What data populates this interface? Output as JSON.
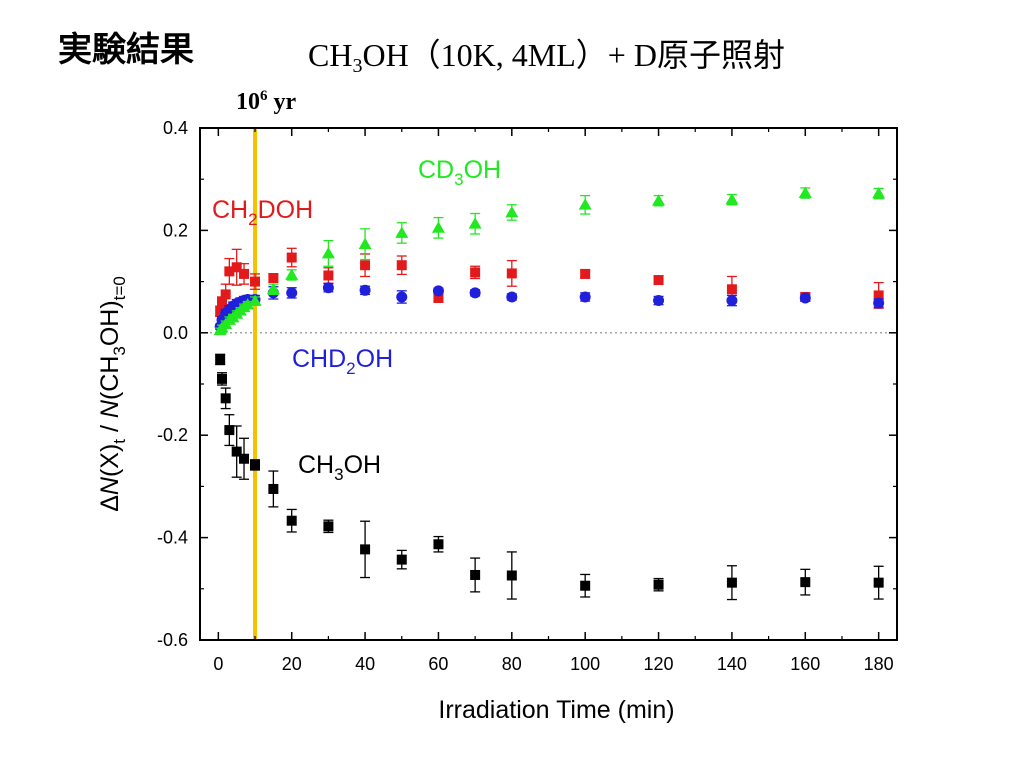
{
  "slide": {
    "heading": "実験結果",
    "title_parts": [
      "CH",
      "3",
      "OH（10K, 4ML）+ D原子照射"
    ],
    "marker_label_base": "10",
    "marker_label_exp": "6",
    "marker_label_unit": " yr"
  },
  "chart_data": {
    "type": "scatter",
    "xlabel": "Irradiation Time (min)",
    "ylabel_parts": [
      "Δ",
      "N",
      "(X)",
      "t",
      " / ",
      "N",
      "(CH",
      "3",
      "OH)",
      "t=0"
    ],
    "xlim": [
      -5,
      185
    ],
    "ylim": [
      -0.6,
      0.4
    ],
    "xticks": [
      0,
      20,
      40,
      60,
      80,
      100,
      120,
      140,
      160,
      180
    ],
    "yticks": [
      -0.6,
      -0.4,
      -0.2,
      0.0,
      0.2,
      0.4
    ],
    "ytick_labels": [
      "-0.6",
      "-0.4",
      "-0.2",
      "0.0",
      "0.2",
      "0.4"
    ],
    "zero_line": true,
    "vertical_marker": {
      "x": 10,
      "color": "#f5c200"
    },
    "series": [
      {
        "name": "CH3OH",
        "label_parts": [
          "CH",
          "3",
          "OH"
        ],
        "color": "#000000",
        "marker": "square",
        "points": [
          {
            "x": 0.5,
            "y": -0.052,
            "err": 0.01
          },
          {
            "x": 1,
            "y": -0.09,
            "err": 0.012
          },
          {
            "x": 2,
            "y": -0.128,
            "err": 0.02
          },
          {
            "x": 3,
            "y": -0.19,
            "err": 0.03
          },
          {
            "x": 5,
            "y": -0.232,
            "err": 0.05
          },
          {
            "x": 7,
            "y": -0.246,
            "err": 0.04
          },
          {
            "x": 10,
            "y": -0.258,
            "err": 0.01
          },
          {
            "x": 15,
            "y": -0.305,
            "err": 0.035
          },
          {
            "x": 20,
            "y": -0.367,
            "err": 0.022
          },
          {
            "x": 30,
            "y": -0.378,
            "err": 0.012
          },
          {
            "x": 40,
            "y": -0.423,
            "err": 0.055
          },
          {
            "x": 50,
            "y": -0.443,
            "err": 0.018
          },
          {
            "x": 60,
            "y": -0.413,
            "err": 0.015
          },
          {
            "x": 70,
            "y": -0.473,
            "err": 0.033
          },
          {
            "x": 80,
            "y": -0.474,
            "err": 0.046
          },
          {
            "x": 100,
            "y": -0.494,
            "err": 0.022
          },
          {
            "x": 120,
            "y": -0.492,
            "err": 0.012
          },
          {
            "x": 140,
            "y": -0.488,
            "err": 0.033
          },
          {
            "x": 160,
            "y": -0.487,
            "err": 0.025
          },
          {
            "x": 180,
            "y": -0.488,
            "err": 0.032
          }
        ]
      },
      {
        "name": "CH2DOH",
        "label_parts": [
          "CH",
          "2",
          "DOH"
        ],
        "color": "#e31a1c",
        "marker": "square",
        "points": [
          {
            "x": 0.5,
            "y": 0.042,
            "err": 0.01
          },
          {
            "x": 1,
            "y": 0.06,
            "err": 0.01
          },
          {
            "x": 2,
            "y": 0.075,
            "err": 0.02
          },
          {
            "x": 3,
            "y": 0.12,
            "err": 0.025
          },
          {
            "x": 5,
            "y": 0.128,
            "err": 0.035
          },
          {
            "x": 7,
            "y": 0.115,
            "err": 0.02
          },
          {
            "x": 10,
            "y": 0.1,
            "err": 0.015
          },
          {
            "x": 15,
            "y": 0.107,
            "err": 0.008
          },
          {
            "x": 20,
            "y": 0.147,
            "err": 0.018
          },
          {
            "x": 30,
            "y": 0.112,
            "err": 0.015
          },
          {
            "x": 40,
            "y": 0.132,
            "err": 0.022
          },
          {
            "x": 50,
            "y": 0.132,
            "err": 0.018
          },
          {
            "x": 60,
            "y": 0.068,
            "err": 0.008
          },
          {
            "x": 70,
            "y": 0.118,
            "err": 0.012
          },
          {
            "x": 80,
            "y": 0.116,
            "err": 0.025
          },
          {
            "x": 100,
            "y": 0.115,
            "err": 0.008
          },
          {
            "x": 120,
            "y": 0.103,
            "err": 0.008
          },
          {
            "x": 140,
            "y": 0.085,
            "err": 0.025
          },
          {
            "x": 160,
            "y": 0.07,
            "err": 0.008
          },
          {
            "x": 180,
            "y": 0.073,
            "err": 0.025
          }
        ]
      },
      {
        "name": "CHD2OH",
        "label_parts": [
          "CHD",
          "2",
          "OH"
        ],
        "color": "#1f1fdc",
        "marker": "circle",
        "points": [
          {
            "x": 0.5,
            "y": 0.012,
            "err": 0.005
          },
          {
            "x": 1,
            "y": 0.025,
            "err": 0.006
          },
          {
            "x": 2,
            "y": 0.038,
            "err": 0.008
          },
          {
            "x": 3,
            "y": 0.045,
            "err": 0.008
          },
          {
            "x": 4,
            "y": 0.052,
            "err": 0.008
          },
          {
            "x": 5,
            "y": 0.057,
            "err": 0.008
          },
          {
            "x": 6,
            "y": 0.06,
            "err": 0.008
          },
          {
            "x": 7,
            "y": 0.063,
            "err": 0.008
          },
          {
            "x": 8,
            "y": 0.065,
            "err": 0.008
          },
          {
            "x": 10,
            "y": 0.065,
            "err": 0.008
          },
          {
            "x": 15,
            "y": 0.078,
            "err": 0.012
          },
          {
            "x": 20,
            "y": 0.078,
            "err": 0.01
          },
          {
            "x": 30,
            "y": 0.088,
            "err": 0.008
          },
          {
            "x": 40,
            "y": 0.083,
            "err": 0.008
          },
          {
            "x": 50,
            "y": 0.07,
            "err": 0.012
          },
          {
            "x": 60,
            "y": 0.082,
            "err": 0.005
          },
          {
            "x": 70,
            "y": 0.078,
            "err": 0.006
          },
          {
            "x": 80,
            "y": 0.07,
            "err": 0.006
          },
          {
            "x": 100,
            "y": 0.07,
            "err": 0.008
          },
          {
            "x": 120,
            "y": 0.063,
            "err": 0.008
          },
          {
            "x": 140,
            "y": 0.063,
            "err": 0.01
          },
          {
            "x": 160,
            "y": 0.068,
            "err": 0.006
          },
          {
            "x": 180,
            "y": 0.058,
            "err": 0.008
          }
        ]
      },
      {
        "name": "CD3OH",
        "label_parts": [
          "CD",
          "3",
          "OH"
        ],
        "color": "#22e822",
        "marker": "triangle",
        "points": [
          {
            "x": 0.5,
            "y": 0.005,
            "err": 0.004
          },
          {
            "x": 1,
            "y": 0.01,
            "err": 0.005
          },
          {
            "x": 2,
            "y": 0.017,
            "err": 0.006
          },
          {
            "x": 3,
            "y": 0.025,
            "err": 0.006
          },
          {
            "x": 4,
            "y": 0.03,
            "err": 0.006
          },
          {
            "x": 5,
            "y": 0.037,
            "err": 0.006
          },
          {
            "x": 6,
            "y": 0.043,
            "err": 0.006
          },
          {
            "x": 7,
            "y": 0.05,
            "err": 0.006
          },
          {
            "x": 8,
            "y": 0.055,
            "err": 0.006
          },
          {
            "x": 10,
            "y": 0.062,
            "err": 0.008
          },
          {
            "x": 15,
            "y": 0.085,
            "err": 0.01
          },
          {
            "x": 20,
            "y": 0.113,
            "err": 0.01
          },
          {
            "x": 30,
            "y": 0.155,
            "err": 0.025
          },
          {
            "x": 40,
            "y": 0.173,
            "err": 0.03
          },
          {
            "x": 50,
            "y": 0.195,
            "err": 0.02
          },
          {
            "x": 60,
            "y": 0.205,
            "err": 0.02
          },
          {
            "x": 70,
            "y": 0.213,
            "err": 0.02
          },
          {
            "x": 80,
            "y": 0.235,
            "err": 0.015
          },
          {
            "x": 100,
            "y": 0.25,
            "err": 0.018
          },
          {
            "x": 120,
            "y": 0.258,
            "err": 0.01
          },
          {
            "x": 140,
            "y": 0.26,
            "err": 0.01
          },
          {
            "x": 160,
            "y": 0.273,
            "err": 0.01
          },
          {
            "x": 180,
            "y": 0.272,
            "err": 0.01
          }
        ]
      }
    ]
  }
}
